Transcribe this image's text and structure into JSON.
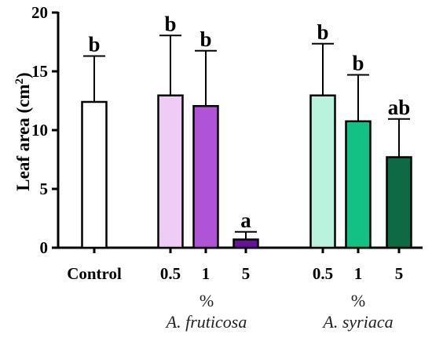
{
  "chart_data": {
    "type": "bar",
    "ylabel": "Leaf area (cm",
    "ylabel_sup": "2",
    "ylabel_close": ")",
    "ylim": [
      0,
      20
    ],
    "yticks": [
      0,
      5,
      10,
      15,
      20
    ],
    "bars": [
      {
        "label": "Control",
        "value": 12.4,
        "err": 3.9,
        "sig": "b",
        "color": "#ffffff"
      },
      {
        "label": "0.5",
        "value": 12.95,
        "err": 5.1,
        "sig": "b",
        "color": "#efccf5"
      },
      {
        "label": "1",
        "value": 12.05,
        "err": 4.7,
        "sig": "b",
        "color": "#b054d6"
      },
      {
        "label": "5",
        "value": 0.7,
        "err": 0.65,
        "sig": "a",
        "color": "#6a0fa0"
      },
      {
        "label": "0.5",
        "value": 12.95,
        "err": 4.4,
        "sig": "b",
        "color": "#b9f3de"
      },
      {
        "label": "1",
        "value": 10.75,
        "err": 3.95,
        "sig": "b",
        "color": "#13c184"
      },
      {
        "label": "5",
        "value": 7.7,
        "err": 3.25,
        "sig": "ab",
        "color": "#0d6a43"
      }
    ],
    "groups": [
      {
        "unit": "%",
        "name": "A. fruticosa"
      },
      {
        "unit": "%",
        "name": "A. syriaca"
      }
    ]
  }
}
